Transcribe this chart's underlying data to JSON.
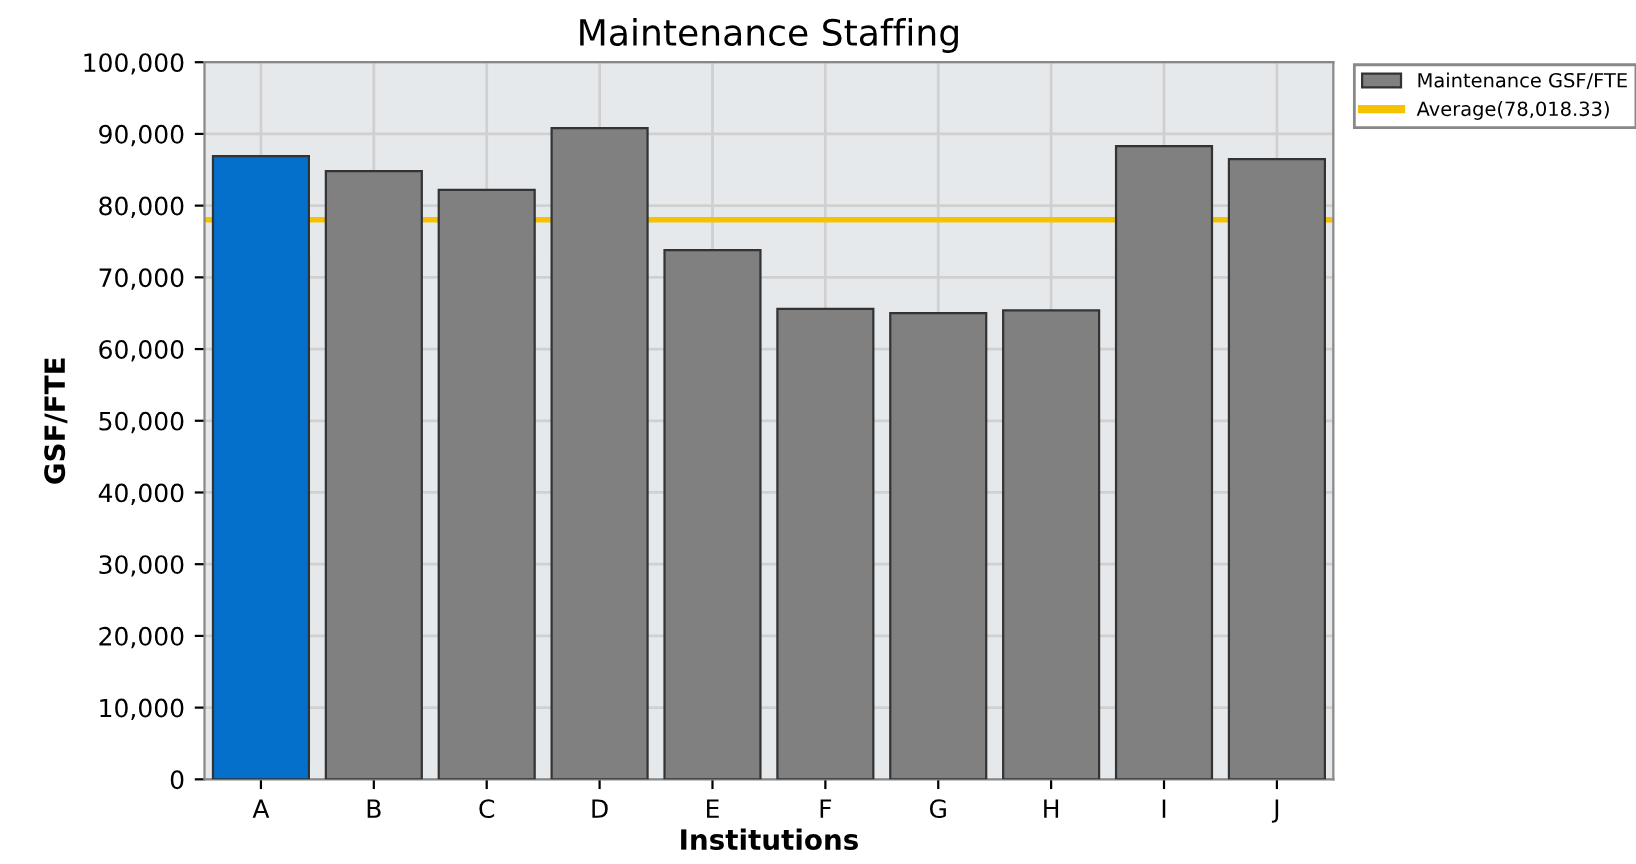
{
  "chart_data": {
    "type": "bar",
    "title": "Maintenance Staffing",
    "xlabel": "Institutions",
    "ylabel": "GSF/FTE",
    "categories": [
      "A",
      "B",
      "C",
      "D",
      "E",
      "F",
      "G",
      "H",
      "I",
      "J"
    ],
    "series": [
      {
        "name": "Maintenance GSF/FTE",
        "color": "#808080",
        "colors": [
          "#0470cc",
          "#808080",
          "#808080",
          "#808080",
          "#808080",
          "#808080",
          "#808080",
          "#808080",
          "#808080",
          "#808080"
        ],
        "values": [
          86900,
          84800,
          82200,
          90800,
          73800,
          65600,
          65000,
          65400,
          88300,
          86500
        ]
      }
    ],
    "ref_lines": [
      {
        "axis": "y",
        "value": 78018.33,
        "label": "Average(78,018.33)",
        "color": "#f5c200",
        "line_style": "solid"
      }
    ],
    "ylim": [
      0,
      100000
    ],
    "yticks": [
      {
        "value": 0,
        "label": "0"
      },
      {
        "value": 10000,
        "label": "10,000"
      },
      {
        "value": 20000,
        "label": "20,000"
      },
      {
        "value": 30000,
        "label": "30,000"
      },
      {
        "value": 40000,
        "label": "40,000"
      },
      {
        "value": 50000,
        "label": "50,000"
      },
      {
        "value": 60000,
        "label": "60,000"
      },
      {
        "value": 70000,
        "label": "70,000"
      },
      {
        "value": 80000,
        "label": "80,000"
      },
      {
        "value": 90000,
        "label": "90,000"
      },
      {
        "value": 100000,
        "label": "100,000"
      }
    ],
    "grid": true,
    "legend": "top right"
  }
}
